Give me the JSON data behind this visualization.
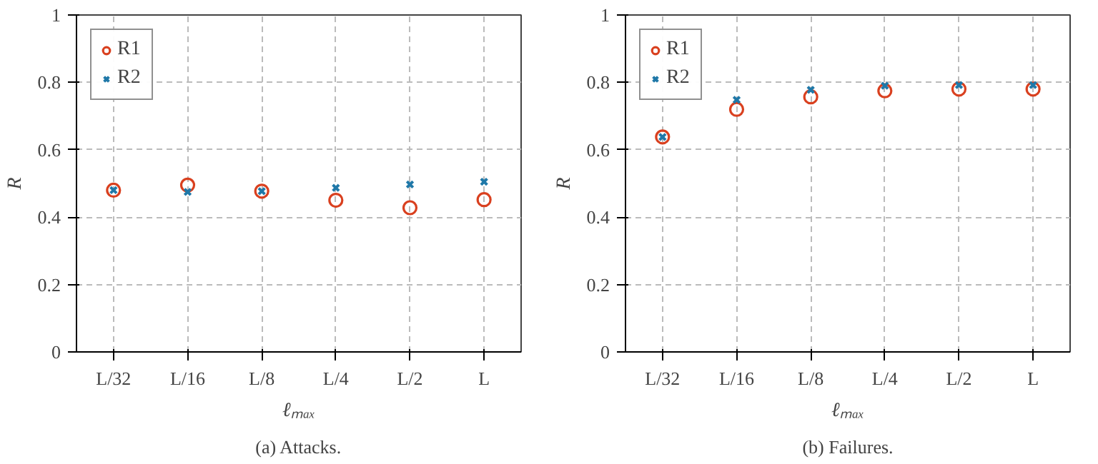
{
  "chart_data": [
    {
      "type": "scatter",
      "title": "(a) Attacks.",
      "xlabel": "ℓₘₐₓ",
      "ylabel": "R",
      "categories": [
        "L/32",
        "L/16",
        "L/8",
        "L/4",
        "L/2",
        "L"
      ],
      "ylim": [
        0,
        1
      ],
      "yticks": [
        0,
        0.2,
        0.4,
        0.6,
        0.8,
        1
      ],
      "grid": true,
      "legend": "top left",
      "series": [
        {
          "name": "R1",
          "color": "#d9401f",
          "marker": "circle",
          "values": [
            0.48,
            0.495,
            0.477,
            0.45,
            0.428,
            0.452
          ]
        },
        {
          "name": "R2",
          "color": "#1f78a8",
          "marker": "cross",
          "values": [
            0.48,
            0.475,
            0.477,
            0.487,
            0.497,
            0.505
          ]
        }
      ]
    },
    {
      "type": "scatter",
      "title": "(b) Failures.",
      "xlabel": "ℓₘₐₓ",
      "ylabel": "R",
      "categories": [
        "L/32",
        "L/16",
        "L/8",
        "L/4",
        "L/2",
        "L"
      ],
      "ylim": [
        0,
        1
      ],
      "yticks": [
        0,
        0.2,
        0.4,
        0.6,
        0.8,
        1
      ],
      "grid": true,
      "legend": "top left",
      "series": [
        {
          "name": "R1",
          "color": "#d9401f",
          "marker": "circle",
          "values": [
            0.638,
            0.72,
            0.757,
            0.775,
            0.78,
            0.78
          ]
        },
        {
          "name": "R2",
          "color": "#1f78a8",
          "marker": "cross",
          "values": [
            0.638,
            0.748,
            0.778,
            0.79,
            0.792,
            0.792
          ]
        }
      ]
    }
  ]
}
